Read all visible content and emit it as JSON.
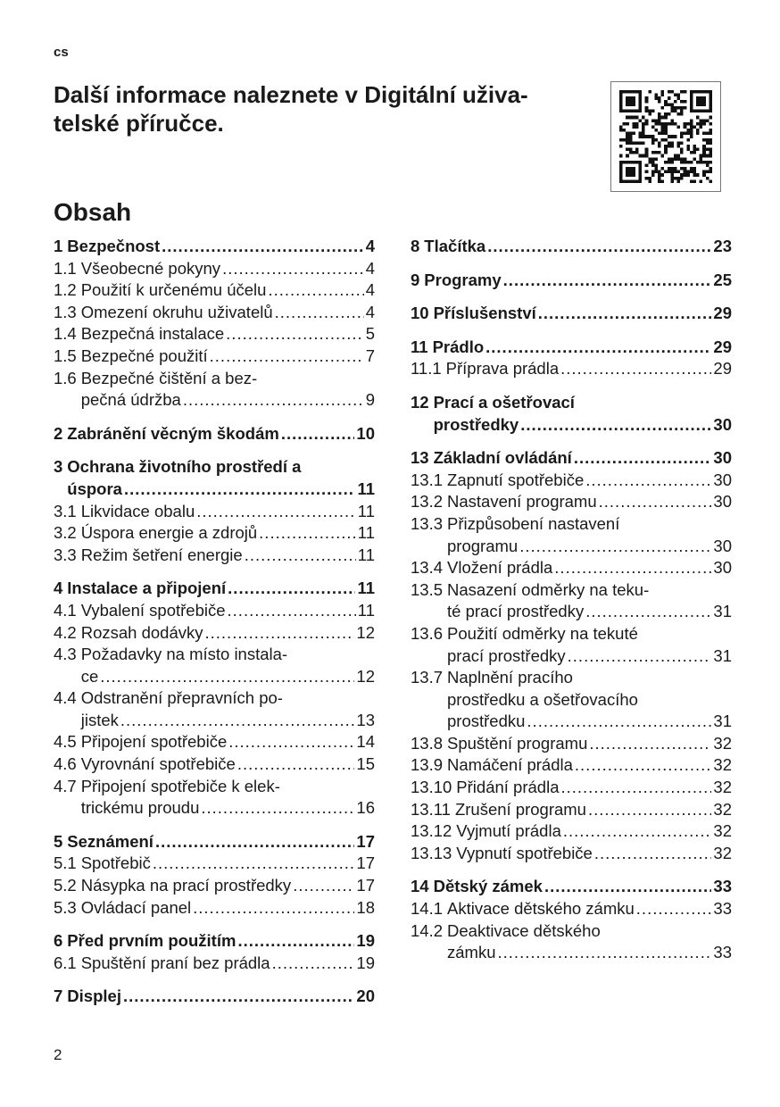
{
  "lang": "cs",
  "title": "Další informace naleznete v Digitální uživa-telské příručce.",
  "title_lines": [
    "Další informace naleznete v Digitální uživa-",
    "telské příručce."
  ],
  "qr_icon": "qr-code-icon",
  "toc_heading": "Obsah",
  "toc": {
    "left": [
      {
        "entries": [
          {
            "num": "1",
            "lines": [
              "Bezpečnost"
            ],
            "page": "4",
            "bold": true
          },
          {
            "num": "1.1",
            "lines": [
              "Všeobecné pokyny"
            ],
            "page": "4"
          },
          {
            "num": "1.2",
            "lines": [
              "Použití k určenému účelu"
            ],
            "page": "4"
          },
          {
            "num": "1.3",
            "lines": [
              "Omezení okruhu uživatelů"
            ],
            "page": "4"
          },
          {
            "num": "1.4",
            "lines": [
              "Bezpečná instalace"
            ],
            "page": "5"
          },
          {
            "num": "1.5",
            "lines": [
              "Bezpečné použití"
            ],
            "page": "7"
          },
          {
            "num": "1.6",
            "lines": [
              "Bezpečné čištění a bez-",
              "pečná údržba"
            ],
            "page": "9"
          }
        ]
      },
      {
        "entries": [
          {
            "num": "2",
            "lines": [
              "Zabránění věcným škodám"
            ],
            "page": "10",
            "bold": true
          }
        ]
      },
      {
        "entries": [
          {
            "num": "3",
            "lines": [
              "Ochrana životního prostředí a",
              "úspora"
            ],
            "page": "11",
            "bold": true
          },
          {
            "num": "3.1",
            "lines": [
              "Likvidace obalu"
            ],
            "page": "11"
          },
          {
            "num": "3.2",
            "lines": [
              "Úspora energie a zdrojů"
            ],
            "page": "11"
          },
          {
            "num": "3.3",
            "lines": [
              "Režim šetření energie"
            ],
            "page": "11"
          }
        ]
      },
      {
        "entries": [
          {
            "num": "4",
            "lines": [
              "Instalace a připojení"
            ],
            "page": "11",
            "bold": true
          },
          {
            "num": "4.1",
            "lines": [
              "Vybalení spotřebiče"
            ],
            "page": "11"
          },
          {
            "num": "4.2",
            "lines": [
              "Rozsah dodávky"
            ],
            "page": "12"
          },
          {
            "num": "4.3",
            "lines": [
              "Požadavky na místo instala-",
              "ce"
            ],
            "page": "12"
          },
          {
            "num": "4.4",
            "lines": [
              "Odstranění přepravních po-",
              "jistek"
            ],
            "page": "13"
          },
          {
            "num": "4.5",
            "lines": [
              "Připojení spotřebiče"
            ],
            "page": "14"
          },
          {
            "num": "4.6",
            "lines": [
              "Vyrovnání spotřebiče"
            ],
            "page": "15"
          },
          {
            "num": "4.7",
            "lines": [
              "Připojení spotřebiče k elek-",
              "trickému proudu"
            ],
            "page": "16"
          }
        ]
      },
      {
        "entries": [
          {
            "num": "5",
            "lines": [
              "Seznámení"
            ],
            "page": "17",
            "bold": true
          },
          {
            "num": "5.1",
            "lines": [
              "Spotřebič"
            ],
            "page": "17"
          },
          {
            "num": "5.2",
            "lines": [
              "Násypka na prací prostředky"
            ],
            "page": "17"
          },
          {
            "num": "5.3",
            "lines": [
              "Ovládací panel"
            ],
            "page": "18"
          }
        ]
      },
      {
        "entries": [
          {
            "num": "6",
            "lines": [
              "Před prvním použitím"
            ],
            "page": "19",
            "bold": true
          },
          {
            "num": "6.1",
            "lines": [
              "Spuštění praní bez prádla"
            ],
            "page": "19"
          }
        ]
      },
      {
        "entries": [
          {
            "num": "7",
            "lines": [
              "Displej"
            ],
            "page": "20",
            "bold": true
          }
        ]
      }
    ],
    "right": [
      {
        "entries": [
          {
            "num": "8",
            "lines": [
              "Tlačítka"
            ],
            "page": "23",
            "bold": true
          }
        ]
      },
      {
        "entries": [
          {
            "num": "9",
            "lines": [
              "Programy"
            ],
            "page": "25",
            "bold": true
          }
        ]
      },
      {
        "entries": [
          {
            "num": "10",
            "lines": [
              "Příslušenství"
            ],
            "page": "29",
            "bold": true
          }
        ]
      },
      {
        "entries": [
          {
            "num": "11",
            "lines": [
              "Prádlo"
            ],
            "page": "29",
            "bold": true
          },
          {
            "num": "11.1",
            "lines": [
              "Příprava prádla"
            ],
            "page": "29"
          }
        ]
      },
      {
        "entries": [
          {
            "num": "12",
            "lines": [
              "Prací a ošetřovací",
              "prostředky"
            ],
            "page": "30",
            "bold": true
          }
        ]
      },
      {
        "entries": [
          {
            "num": "13",
            "lines": [
              "Základní ovládání"
            ],
            "page": "30",
            "bold": true
          },
          {
            "num": "13.1",
            "lines": [
              "Zapnutí spotřebiče"
            ],
            "page": "30"
          },
          {
            "num": "13.2",
            "lines": [
              "Nastavení programu"
            ],
            "page": "30"
          },
          {
            "num": "13.3",
            "lines": [
              "Přizpůsobení nastavení",
              "programu"
            ],
            "page": "30"
          },
          {
            "num": "13.4",
            "lines": [
              "Vložení prádla"
            ],
            "page": "30"
          },
          {
            "num": "13.5",
            "lines": [
              "Nasazení odměrky na teku-",
              "té prací prostředky"
            ],
            "page": "31"
          },
          {
            "num": "13.6",
            "lines": [
              "Použití odměrky na tekuté",
              "prací prostředky"
            ],
            "page": "31"
          },
          {
            "num": "13.7",
            "lines": [
              "Naplnění pracího",
              "prostředku a ošetřovacího",
              "prostředku"
            ],
            "page": "31"
          },
          {
            "num": "13.8",
            "lines": [
              "Spuštění programu"
            ],
            "page": "32"
          },
          {
            "num": "13.9",
            "lines": [
              "Namáčení prádla"
            ],
            "page": "32"
          },
          {
            "num": "13.10",
            "lines": [
              "Přidání prádla"
            ],
            "page": "32"
          },
          {
            "num": "13.11",
            "lines": [
              "Zrušení programu"
            ],
            "page": "32"
          },
          {
            "num": "13.12",
            "lines": [
              "Vyjmutí prádla"
            ],
            "page": "32"
          },
          {
            "num": "13.13",
            "lines": [
              "Vypnutí spotřebiče"
            ],
            "page": "32"
          }
        ]
      },
      {
        "entries": [
          {
            "num": "14",
            "lines": [
              "Dětský zámek"
            ],
            "page": "33",
            "bold": true
          },
          {
            "num": "14.1",
            "lines": [
              "Aktivace dětského zámku"
            ],
            "page": "33"
          },
          {
            "num": "14.2",
            "lines": [
              "Deaktivace dětského",
              "zámku"
            ],
            "page": "33"
          }
        ]
      }
    ]
  },
  "page_number": "2"
}
